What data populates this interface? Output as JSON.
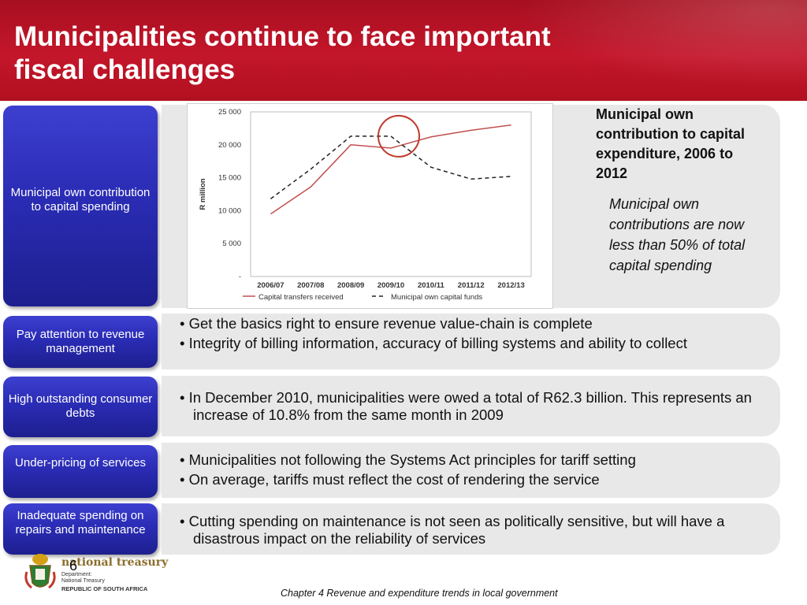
{
  "header": {
    "title_line1": "Municipalities continue to face important",
    "title_line2": "fiscal challenges"
  },
  "rows": [
    {
      "label": "Municipal own contribution to capital spending",
      "bullets": []
    },
    {
      "label": "Pay attention to revenue management",
      "bullets": [
        "• Get the basics right to ensure revenue value-chain is complete",
        "• Integrity of billing information, accuracy of billing systems and ability to collect"
      ]
    },
    {
      "label": "High outstanding consumer debts",
      "bullets": [
        "• In December 2010, municipalities were owed a total of R62.3 billion. This represents an increase of 10.8% from the same month in 2009"
      ]
    },
    {
      "label": "Under-pricing of services",
      "bullets": [
        "• Municipalities not following the Systems Act principles for tariff setting",
        "• On average, tariffs must reflect the cost of rendering the service"
      ]
    },
    {
      "label": "Inadequate spending on repairs and maintenance",
      "bullets": [
        "• Cutting spending on maintenance is not seen as politically sensitive, but will have a disastrous impact on the reliability of services"
      ]
    }
  ],
  "side_note": {
    "heading": "Municipal own contribution to capital expenditure, 2006 to 2012",
    "italic": "Municipal own contributions are now less than 50% of total capital spending"
  },
  "footer": {
    "page_number": "6",
    "chapter": "Chapter 4  Revenue and expenditure trends in local government",
    "logo_brand": "national treasury",
    "logo_line1": "Department:",
    "logo_line2": "National Treasury",
    "logo_line3": "REPUBLIC OF SOUTH AFRICA"
  },
  "colors": {
    "title_red": "#b8132a",
    "box_blue": "#2a2cb5",
    "panel_grey": "#e8e8e8",
    "series_solid": "#c0504d",
    "series_dashed": "#222222",
    "highlight_circle": "#c0392b"
  },
  "chart_data": {
    "type": "line",
    "title": "",
    "xlabel": "",
    "ylabel": "R million",
    "categories": [
      "2006/07",
      "2007/08",
      "2008/09",
      "2009/10",
      "2010/11",
      "2011/12",
      "2012/13"
    ],
    "ylim": [
      0,
      25000
    ],
    "yticks": [
      0,
      5000,
      10000,
      15000,
      20000,
      25000
    ],
    "ytick_labels": [
      "-",
      "5 000",
      "10 000",
      "15 000",
      "20 000",
      "25 000"
    ],
    "series": [
      {
        "name": "Capital transfers received",
        "style": "solid",
        "values": [
          9500,
          13600,
          20000,
          19500,
          21200,
          22200,
          23000
        ]
      },
      {
        "name": "Municipal own capital funds",
        "style": "dashed",
        "values": [
          11800,
          16300,
          21300,
          21300,
          16600,
          14800,
          15200
        ]
      }
    ],
    "legend_position": "bottom",
    "grid": false,
    "annotation": "circle highlighting crossover near 2009/10"
  }
}
